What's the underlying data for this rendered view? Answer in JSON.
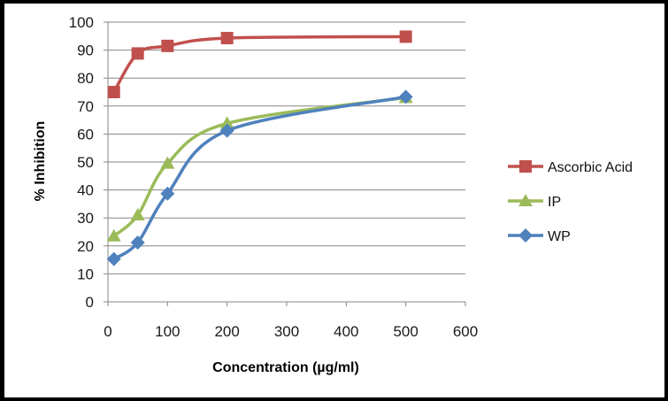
{
  "chart_data": {
    "type": "line",
    "title": "",
    "xlabel": "Concentration (µg/ml)",
    "ylabel": "% Inhibition",
    "xlim": [
      0,
      600
    ],
    "ylim": [
      0,
      100
    ],
    "xticks": [
      0,
      100,
      200,
      300,
      400,
      500,
      600
    ],
    "yticks": [
      0,
      10,
      20,
      30,
      40,
      50,
      60,
      70,
      80,
      90,
      100
    ],
    "grid": "horizontal",
    "legend_position": "right",
    "smooth": true,
    "series": [
      {
        "name": "Ascorbic Acid",
        "color": "#c0504d",
        "marker": "square",
        "x": [
          10,
          50,
          100,
          200,
          500
        ],
        "y": [
          75,
          88.8,
          91.5,
          94.3,
          94.8
        ]
      },
      {
        "name": "IP",
        "color": "#9bbb59",
        "marker": "triangle",
        "x": [
          10,
          50,
          100,
          200,
          500
        ],
        "y": [
          23.5,
          31,
          49.5,
          63.8,
          73
        ]
      },
      {
        "name": "WP",
        "color": "#4f81bd",
        "marker": "diamond",
        "x": [
          10,
          50,
          100,
          200,
          500
        ],
        "y": [
          15.3,
          21.2,
          38.7,
          61.2,
          73.3
        ]
      }
    ]
  }
}
